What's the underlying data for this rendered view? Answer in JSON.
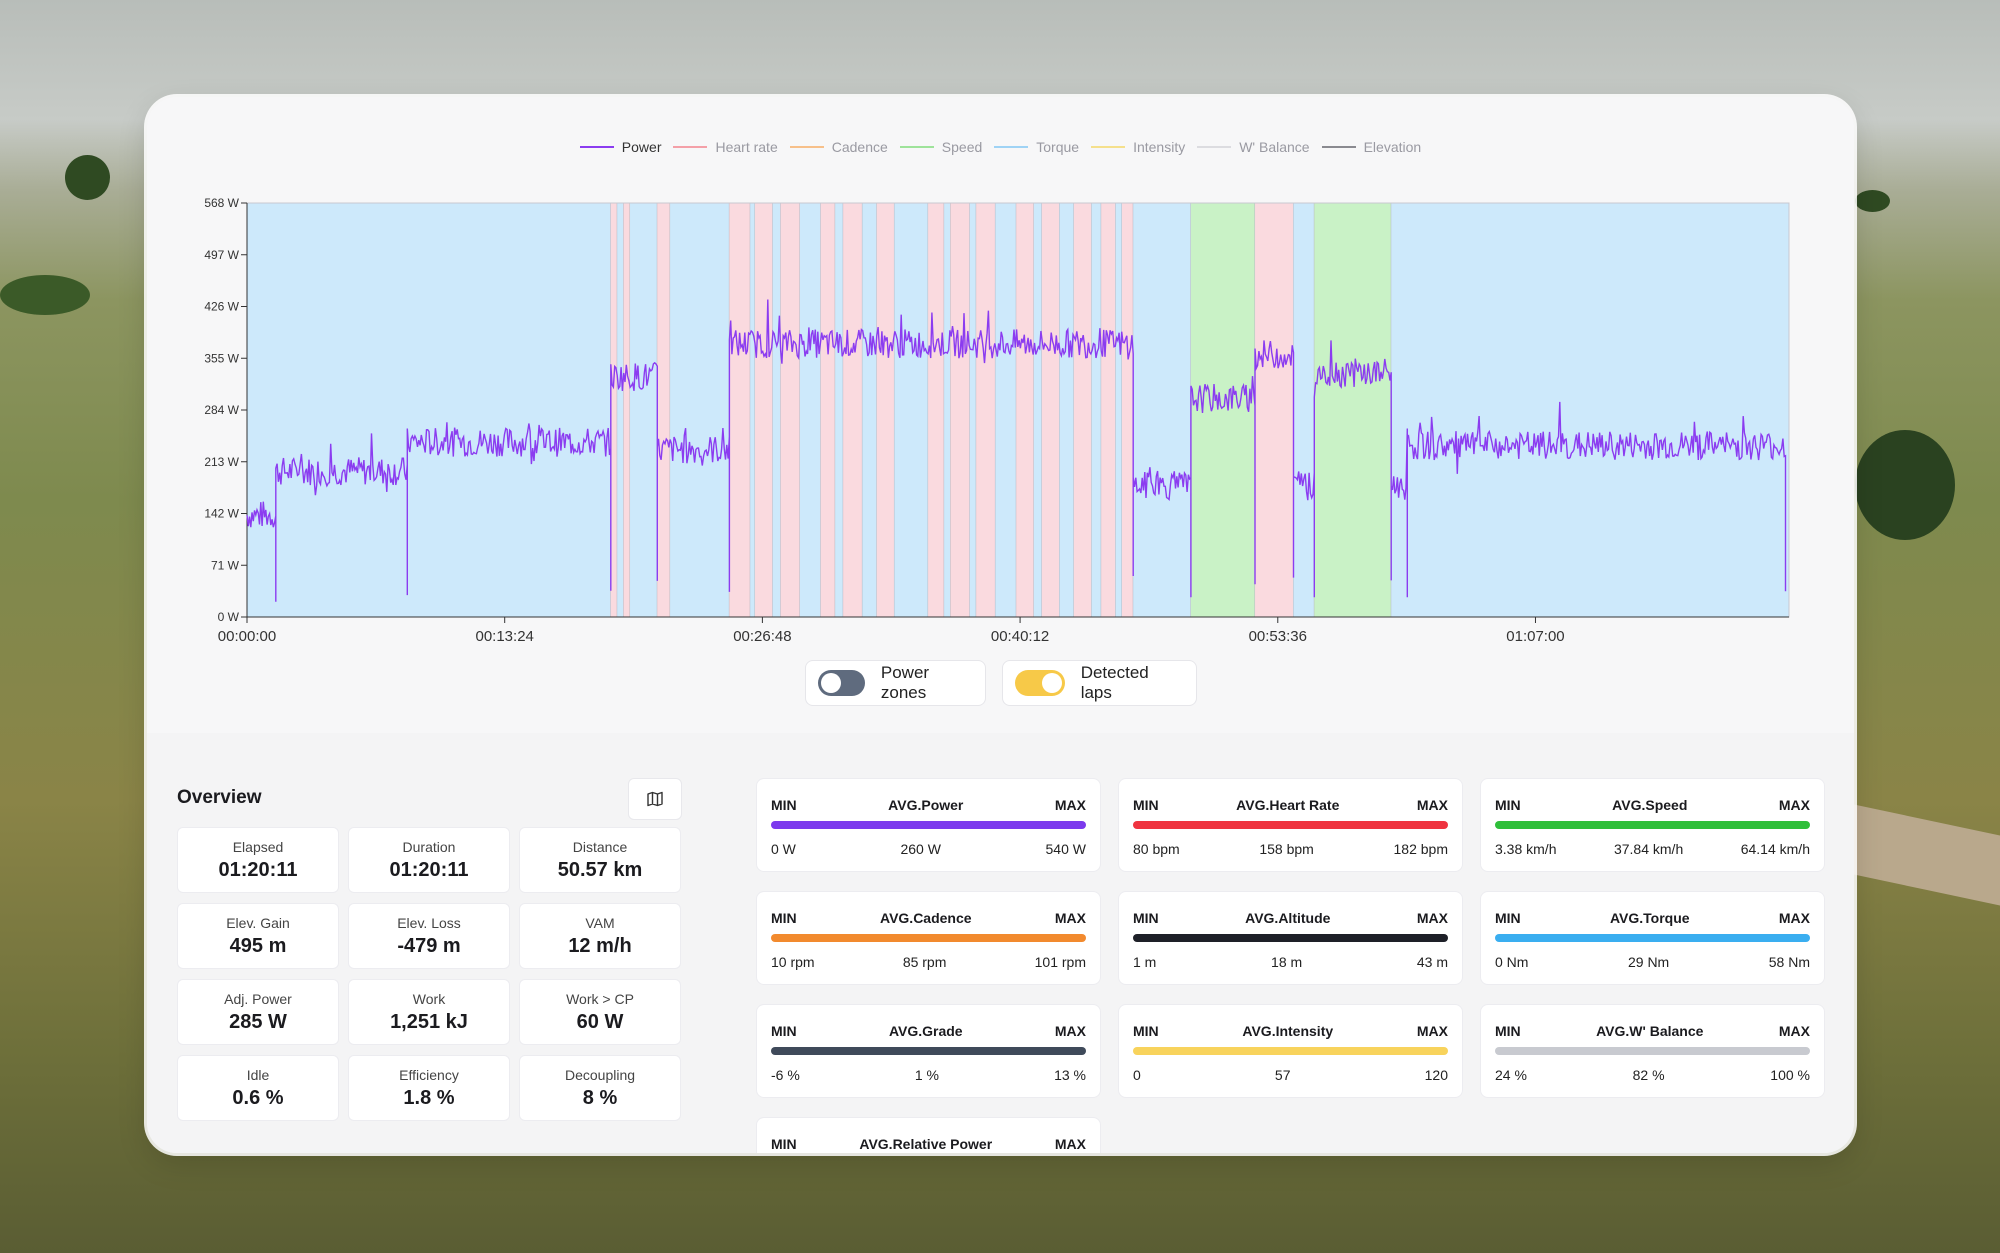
{
  "legend": [
    {
      "label": "Power",
      "color": "#8b3cf0",
      "active": true
    },
    {
      "label": "Heart rate",
      "color": "#f4a0a8",
      "active": false
    },
    {
      "label": "Cadence",
      "color": "#f7c08a",
      "active": false
    },
    {
      "label": "Speed",
      "color": "#9ee39a",
      "active": false
    },
    {
      "label": "Torque",
      "color": "#9fd3f5",
      "active": false
    },
    {
      "label": "Intensity",
      "color": "#f5e08c",
      "active": false
    },
    {
      "label": "W' Balance",
      "color": "#dcdce0",
      "active": false
    },
    {
      "label": "Elevation",
      "color": "#8a8a90",
      "active": false
    }
  ],
  "chart_data": {
    "type": "line",
    "y_ticks": [
      "568 W",
      "497 W",
      "426 W",
      "355 W",
      "284 W",
      "213 W",
      "142 W",
      "71 W",
      "0 W"
    ],
    "x_ticks": [
      "00:00:00",
      "00:13:24",
      "00:26:48",
      "00:40:12",
      "00:53:36",
      "01:07:00"
    ],
    "ylim": [
      0,
      568
    ],
    "xlim_seconds": [
      0,
      4811
    ],
    "series": [
      {
        "name": "Power",
        "color": "#8b3cf0"
      }
    ],
    "lap_colors": {
      "blue": "#cde9fb",
      "pink": "#fadadf",
      "green": "#c9f2c6"
    },
    "laps": [
      {
        "start": 0,
        "end": 1135,
        "color": "blue"
      },
      {
        "start": 1135,
        "end": 1155,
        "color": "pink"
      },
      {
        "start": 1155,
        "end": 1175,
        "color": "blue"
      },
      {
        "start": 1175,
        "end": 1195,
        "color": "pink"
      },
      {
        "start": 1195,
        "end": 1280,
        "color": "blue"
      },
      {
        "start": 1280,
        "end": 1320,
        "color": "pink"
      },
      {
        "start": 1320,
        "end": 1505,
        "color": "blue"
      },
      {
        "start": 1505,
        "end": 1570,
        "color": "pink"
      },
      {
        "start": 1570,
        "end": 1585,
        "color": "blue"
      },
      {
        "start": 1585,
        "end": 1640,
        "color": "pink"
      },
      {
        "start": 1640,
        "end": 1665,
        "color": "blue"
      },
      {
        "start": 1665,
        "end": 1725,
        "color": "pink"
      },
      {
        "start": 1725,
        "end": 1790,
        "color": "blue"
      },
      {
        "start": 1790,
        "end": 1835,
        "color": "pink"
      },
      {
        "start": 1835,
        "end": 1860,
        "color": "blue"
      },
      {
        "start": 1860,
        "end": 1920,
        "color": "pink"
      },
      {
        "start": 1920,
        "end": 1965,
        "color": "blue"
      },
      {
        "start": 1965,
        "end": 2020,
        "color": "pink"
      },
      {
        "start": 2020,
        "end": 2125,
        "color": "blue"
      },
      {
        "start": 2125,
        "end": 2175,
        "color": "pink"
      },
      {
        "start": 2175,
        "end": 2195,
        "color": "blue"
      },
      {
        "start": 2195,
        "end": 2255,
        "color": "pink"
      },
      {
        "start": 2255,
        "end": 2275,
        "color": "blue"
      },
      {
        "start": 2275,
        "end": 2335,
        "color": "pink"
      },
      {
        "start": 2335,
        "end": 2400,
        "color": "blue"
      },
      {
        "start": 2400,
        "end": 2455,
        "color": "pink"
      },
      {
        "start": 2455,
        "end": 2480,
        "color": "blue"
      },
      {
        "start": 2480,
        "end": 2535,
        "color": "pink"
      },
      {
        "start": 2535,
        "end": 2580,
        "color": "blue"
      },
      {
        "start": 2580,
        "end": 2635,
        "color": "pink"
      },
      {
        "start": 2635,
        "end": 2665,
        "color": "blue"
      },
      {
        "start": 2665,
        "end": 2710,
        "color": "pink"
      },
      {
        "start": 2710,
        "end": 2730,
        "color": "blue"
      },
      {
        "start": 2730,
        "end": 2765,
        "color": "pink"
      },
      {
        "start": 2765,
        "end": 2945,
        "color": "blue"
      },
      {
        "start": 2945,
        "end": 3145,
        "color": "green"
      },
      {
        "start": 3145,
        "end": 3265,
        "color": "pink"
      },
      {
        "start": 3265,
        "end": 3330,
        "color": "blue"
      },
      {
        "start": 3330,
        "end": 3570,
        "color": "green"
      },
      {
        "start": 3570,
        "end": 4811,
        "color": "blue"
      }
    ],
    "power_segments": [
      {
        "start": 0,
        "end": 90,
        "value": 140
      },
      {
        "start": 90,
        "end": 500,
        "value": 200
      },
      {
        "start": 500,
        "end": 1135,
        "value": 240
      },
      {
        "start": 1135,
        "end": 1280,
        "value": 330
      },
      {
        "start": 1280,
        "end": 1505,
        "value": 230
      },
      {
        "start": 1505,
        "end": 2765,
        "value": 375
      },
      {
        "start": 2765,
        "end": 2945,
        "value": 180
      },
      {
        "start": 2945,
        "end": 3145,
        "value": 300
      },
      {
        "start": 3145,
        "end": 3265,
        "value": 360
      },
      {
        "start": 3265,
        "end": 3330,
        "value": 180
      },
      {
        "start": 3330,
        "end": 3570,
        "value": 335
      },
      {
        "start": 3570,
        "end": 3620,
        "value": 180
      },
      {
        "start": 3620,
        "end": 4800,
        "value": 235
      }
    ]
  },
  "toggles": {
    "power_zones": {
      "label": "Power zones",
      "on": false
    },
    "detected_laps": {
      "label": "Detected laps",
      "on": true
    }
  },
  "overview": {
    "title": "Overview",
    "map_icon": "map-icon",
    "stats": [
      {
        "label": "Elapsed",
        "value": "01:20:11"
      },
      {
        "label": "Duration",
        "value": "01:20:11"
      },
      {
        "label": "Distance",
        "value": "50.57 km"
      },
      {
        "label": "Elev. Gain",
        "value": "495 m"
      },
      {
        "label": "Elev. Loss",
        "value": "-479 m"
      },
      {
        "label": "VAM",
        "value": "12 m/h"
      },
      {
        "label": "Adj. Power",
        "value": "285 W"
      },
      {
        "label": "Work",
        "value": "1,251 kJ"
      },
      {
        "label": "Work > CP",
        "value": "60 W"
      },
      {
        "label": "Idle",
        "value": "0.6 %"
      },
      {
        "label": "Efficiency",
        "value": "1.8 %"
      },
      {
        "label": "Decoupling",
        "value": "8 %"
      }
    ]
  },
  "metrics": [
    {
      "title": "AVG.Power",
      "min": "0 W",
      "avg": "260 W",
      "max": "540 W",
      "color": "#7c3aed"
    },
    {
      "title": "AVG.Heart Rate",
      "min": "80 bpm",
      "avg": "158 bpm",
      "max": "182 bpm",
      "color": "#ef3340"
    },
    {
      "title": "AVG.Speed",
      "min": "3.38 km/h",
      "avg": "37.84 km/h",
      "max": "64.14 km/h",
      "color": "#2fbf3a"
    },
    {
      "title": "AVG.Cadence",
      "min": "10 rpm",
      "avg": "85 rpm",
      "max": "101 rpm",
      "color": "#f28a2e"
    },
    {
      "title": "AVG.Altitude",
      "min": "1 m",
      "avg": "18 m",
      "max": "43 m",
      "color": "#1e2028"
    },
    {
      "title": "AVG.Torque",
      "min": "0 Nm",
      "avg": "29 Nm",
      "max": "58 Nm",
      "color": "#3aaef0"
    },
    {
      "title": "AVG.Grade",
      "min": "-6 %",
      "avg": "1 %",
      "max": "13 %",
      "color": "#3f4a5a"
    },
    {
      "title": "AVG.Intensity",
      "min": "0",
      "avg": "57",
      "max": "120",
      "color": "#f8d35c"
    },
    {
      "title": "AVG.W' Balance",
      "min": "24 %",
      "avg": "82 %",
      "max": "100 %",
      "color": "#c8cad0"
    },
    {
      "title": "AVG.Relative Power",
      "min": "",
      "avg": "",
      "max": "",
      "color": "#7c3aed"
    }
  ],
  "metric_min_label": "MIN",
  "metric_max_label": "MAX"
}
